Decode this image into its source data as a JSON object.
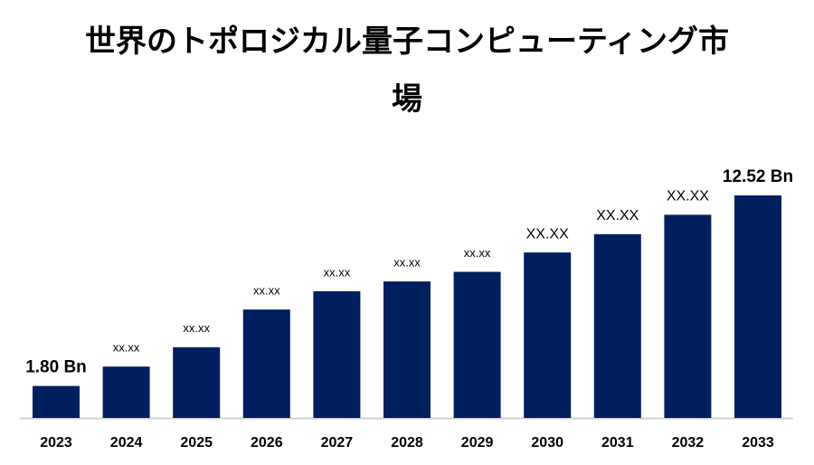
{
  "chart_data": {
    "type": "bar",
    "title": "世界のトポロジカル量子コンピューティング市場",
    "categories": [
      "2023",
      "2024",
      "2025",
      "2026",
      "2027",
      "2028",
      "2029",
      "2030",
      "2031",
      "2032",
      "2033"
    ],
    "values": [
      1.8,
      2.89,
      3.98,
      6.1,
      7.13,
      7.68,
      8.22,
      9.31,
      10.34,
      11.43,
      12.52
    ],
    "value_labels": [
      "1.80 Bn",
      "xx.xx",
      "xx.xx",
      "xx.xx",
      "xx.xx",
      "xx.xx",
      "xx.xx",
      "XX.XX",
      "XX.XX",
      "XX.XX",
      "12.52 Bn"
    ],
    "color": "#001f5f"
  }
}
